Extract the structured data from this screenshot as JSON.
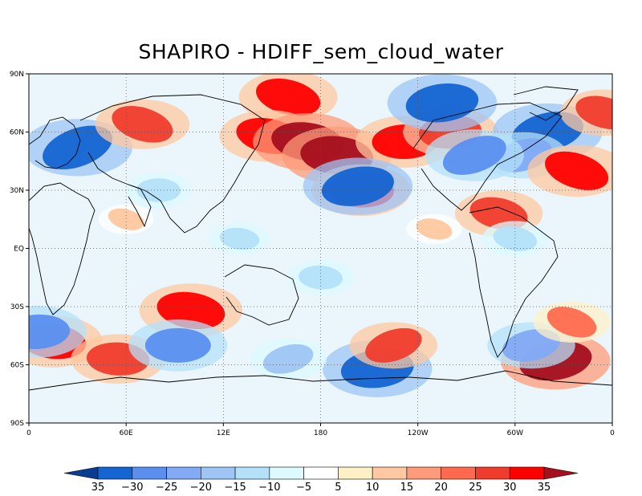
{
  "chart_data": {
    "type": "heatmap",
    "title": "SHAPIRO  -  HDIFF_sem_cloud_water",
    "xlabel": "",
    "ylabel": "",
    "x_ticks": [
      "0",
      "60E",
      "12E",
      "180",
      "120W",
      "60W",
      "0"
    ],
    "y_ticks": [
      "90N",
      "60N",
      "30N",
      "EQ",
      "30S",
      "60S",
      "90S"
    ],
    "xlim": [
      0,
      360
    ],
    "ylim": [
      -90,
      90
    ],
    "grid": true,
    "grid_style": "dotted",
    "colorbar": {
      "labels": [
        "35",
        "−30",
        "−25",
        "−20",
        "−15",
        "−10",
        "−5",
        "5",
        "10",
        "15",
        "20",
        "25",
        "30",
        "35"
      ],
      "colors": [
        "#0a3d91",
        "#1464d2",
        "#5a8ff0",
        "#82aaf5",
        "#9ec6f5",
        "#b4e1fa",
        "#dcfaff",
        "#ffffff",
        "#fff0c8",
        "#ffc8a0",
        "#ff9b7a",
        "#ff6a4e",
        "#f03c2d",
        "#ff0000",
        "#a50f1e"
      ]
    },
    "features": [
      {
        "lon": 30,
        "lat": 52,
        "value": -35
      },
      {
        "lon": 70,
        "lat": 64,
        "value": 28
      },
      {
        "lon": 160,
        "lat": 78,
        "value": 30
      },
      {
        "lon": 148,
        "lat": 58,
        "value": 30
      },
      {
        "lon": 172,
        "lat": 55,
        "value": 35
      },
      {
        "lon": 190,
        "lat": 48,
        "value": 35
      },
      {
        "lon": 205,
        "lat": 30,
        "value": 30
      },
      {
        "lon": 232,
        "lat": 55,
        "value": 30
      },
      {
        "lon": 260,
        "lat": 60,
        "value": 28
      },
      {
        "lon": 255,
        "lat": 75,
        "value": -35
      },
      {
        "lon": 203,
        "lat": 32,
        "value": -35
      },
      {
        "lon": 320,
        "lat": 60,
        "value": -35
      },
      {
        "lon": 305,
        "lat": 48,
        "value": -25
      },
      {
        "lon": 275,
        "lat": 48,
        "value": -30
      },
      {
        "lon": 338,
        "lat": 40,
        "value": 30
      },
      {
        "lon": 355,
        "lat": 70,
        "value": 25
      },
      {
        "lon": 290,
        "lat": 18,
        "value": 25
      },
      {
        "lon": 100,
        "lat": -32,
        "value": 32
      },
      {
        "lon": 15,
        "lat": -48,
        "value": 30
      },
      {
        "lon": 55,
        "lat": -57,
        "value": 28
      },
      {
        "lon": 92,
        "lat": -50,
        "value": -30
      },
      {
        "lon": 5,
        "lat": -43,
        "value": -30
      },
      {
        "lon": 215,
        "lat": -62,
        "value": -35
      },
      {
        "lon": 325,
        "lat": -58,
        "value": 35
      },
      {
        "lon": 310,
        "lat": -50,
        "value": -25
      },
      {
        "lon": 160,
        "lat": -57,
        "value": -20
      },
      {
        "lon": 225,
        "lat": -50,
        "value": 25
      },
      {
        "lon": 335,
        "lat": -38,
        "value": 20
      },
      {
        "lon": 60,
        "lat": 15,
        "value": 10
      },
      {
        "lon": 250,
        "lat": 10,
        "value": 10
      },
      {
        "lon": 300,
        "lat": 5,
        "value": -15
      },
      {
        "lon": 130,
        "lat": 5,
        "value": -12
      },
      {
        "lon": 180,
        "lat": -15,
        "value": -15
      },
      {
        "lon": 80,
        "lat": 30,
        "value": -15
      }
    ]
  }
}
